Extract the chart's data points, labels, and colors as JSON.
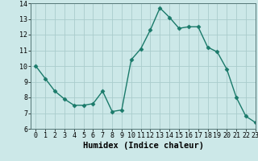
{
  "x": [
    0,
    1,
    2,
    3,
    4,
    5,
    6,
    7,
    8,
    9,
    10,
    11,
    12,
    13,
    14,
    15,
    16,
    17,
    18,
    19,
    20,
    21,
    22,
    23
  ],
  "y": [
    10.0,
    9.2,
    8.4,
    7.9,
    7.5,
    7.5,
    7.6,
    8.4,
    7.1,
    7.2,
    10.4,
    11.1,
    12.3,
    13.7,
    13.1,
    12.4,
    12.5,
    12.5,
    11.2,
    10.9,
    9.8,
    8.0,
    6.8,
    6.4
  ],
  "line_color": "#1a7a6a",
  "marker": "D",
  "marker_size": 2.5,
  "bg_color": "#cce8e8",
  "grid_color": "#aacccc",
  "xlabel": "Humidex (Indice chaleur)",
  "ylim": [
    6,
    14
  ],
  "xlim": [
    -0.5,
    23
  ],
  "yticks": [
    6,
    7,
    8,
    9,
    10,
    11,
    12,
    13,
    14
  ],
  "xticks": [
    0,
    1,
    2,
    3,
    4,
    5,
    6,
    7,
    8,
    9,
    10,
    11,
    12,
    13,
    14,
    15,
    16,
    17,
    18,
    19,
    20,
    21,
    22,
    23
  ],
  "tick_fontsize": 6,
  "xlabel_fontsize": 7.5,
  "linewidth": 1.0
}
